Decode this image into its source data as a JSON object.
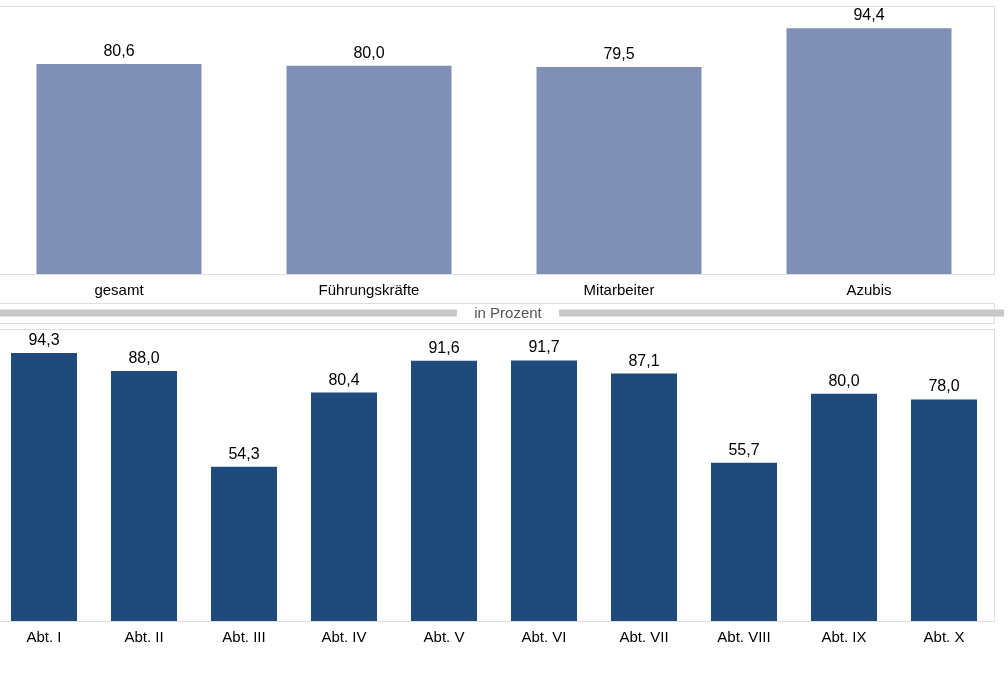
{
  "chart_data": [
    {
      "type": "bar",
      "categories": [
        "gesamt",
        "Führungskräfte",
        "Mitarbeiter",
        "Azubis"
      ],
      "values": [
        80.6,
        80.0,
        79.5,
        94.4
      ],
      "value_labels": [
        "80,6",
        "80,0",
        "79,5",
        "94,4"
      ],
      "color": "#7f8fb5",
      "tick_labels": "x"
    },
    {
      "type": "bar",
      "categories": [
        "Abt. I",
        "Abt. II",
        "Abt. III",
        "Abt. IV",
        "Abt. V",
        "Abt. VI",
        "Abt. VII",
        "Abt. VIII",
        "Abt. IX",
        "Abt. X"
      ],
      "values": [
        94.3,
        88.0,
        54.3,
        80.4,
        91.6,
        91.7,
        87.1,
        55.7,
        80.0,
        78.0
      ],
      "value_labels": [
        "94,3",
        "88,0",
        "54,3",
        "80,4",
        "91,6",
        "91,7",
        "87,1",
        "55,7",
        "80,0",
        "78,0"
      ],
      "color": "#1f4a7c",
      "tick_labels": "x",
      "annotations": [
        "in Prozent"
      ]
    }
  ]
}
